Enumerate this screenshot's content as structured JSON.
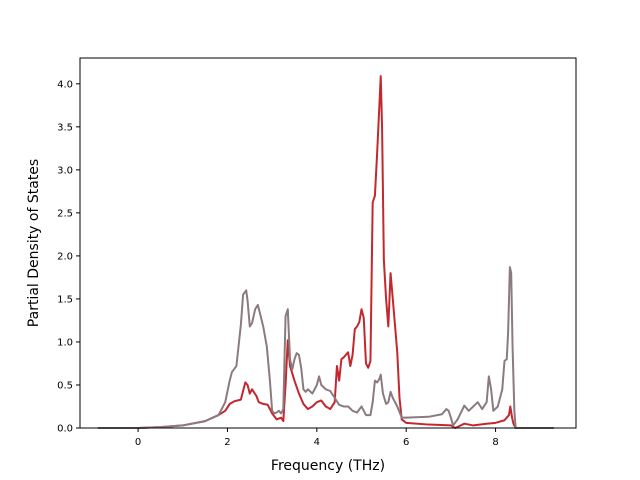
{
  "chart_data": {
    "type": "line",
    "title": "",
    "xlabel": "Frequency (THz)",
    "ylabel": "Partial Density of States",
    "xlim": [
      -1.3,
      9.8
    ],
    "ylim": [
      0.0,
      4.3
    ],
    "xticks": [
      0,
      2,
      4,
      6,
      8
    ],
    "yticks": [
      0.0,
      0.5,
      1.0,
      1.5,
      2.0,
      2.5,
      3.0,
      3.5,
      4.0
    ],
    "xtick_labels": [
      "0",
      "2",
      "4",
      "6",
      "8"
    ],
    "ytick_labels": [
      "0.0",
      "0.5",
      "1.0",
      "1.5",
      "2.0",
      "2.5",
      "3.0",
      "3.5",
      "4.0"
    ],
    "grid": false,
    "legend": false,
    "series": [
      {
        "color": "#c2282e",
        "points": [
          [
            -0.9,
            0.0
          ],
          [
            0.0,
            0.0
          ],
          [
            0.5,
            0.01
          ],
          [
            1.0,
            0.03
          ],
          [
            1.5,
            0.08
          ],
          [
            1.8,
            0.15
          ],
          [
            1.95,
            0.2
          ],
          [
            2.05,
            0.28
          ],
          [
            2.15,
            0.31
          ],
          [
            2.3,
            0.33
          ],
          [
            2.4,
            0.53
          ],
          [
            2.45,
            0.5
          ],
          [
            2.5,
            0.4
          ],
          [
            2.55,
            0.45
          ],
          [
            2.65,
            0.37
          ],
          [
            2.7,
            0.3
          ],
          [
            2.8,
            0.28
          ],
          [
            2.9,
            0.27
          ],
          [
            3.0,
            0.17
          ],
          [
            3.1,
            0.1
          ],
          [
            3.2,
            0.12
          ],
          [
            3.25,
            0.08
          ],
          [
            3.3,
            0.5
          ],
          [
            3.35,
            1.02
          ],
          [
            3.4,
            0.72
          ],
          [
            3.5,
            0.55
          ],
          [
            3.6,
            0.4
          ],
          [
            3.7,
            0.28
          ],
          [
            3.8,
            0.22
          ],
          [
            3.9,
            0.25
          ],
          [
            4.0,
            0.3
          ],
          [
            4.1,
            0.32
          ],
          [
            4.2,
            0.25
          ],
          [
            4.3,
            0.22
          ],
          [
            4.4,
            0.3
          ],
          [
            4.45,
            0.72
          ],
          [
            4.5,
            0.55
          ],
          [
            4.55,
            0.8
          ],
          [
            4.6,
            0.82
          ],
          [
            4.7,
            0.88
          ],
          [
            4.75,
            0.72
          ],
          [
            4.8,
            0.85
          ],
          [
            4.85,
            1.15
          ],
          [
            4.9,
            1.18
          ],
          [
            4.95,
            1.23
          ],
          [
            5.0,
            1.38
          ],
          [
            5.05,
            1.28
          ],
          [
            5.1,
            0.75
          ],
          [
            5.15,
            0.7
          ],
          [
            5.2,
            0.78
          ],
          [
            5.25,
            2.62
          ],
          [
            5.3,
            2.7
          ],
          [
            5.35,
            3.2
          ],
          [
            5.4,
            3.75
          ],
          [
            5.43,
            4.09
          ],
          [
            5.46,
            3.5
          ],
          [
            5.5,
            1.95
          ],
          [
            5.55,
            1.5
          ],
          [
            5.6,
            1.18
          ],
          [
            5.65,
            1.8
          ],
          [
            5.7,
            1.5
          ],
          [
            5.8,
            0.88
          ],
          [
            5.85,
            0.35
          ],
          [
            5.9,
            0.1
          ],
          [
            6.0,
            0.06
          ],
          [
            6.5,
            0.04
          ],
          [
            7.0,
            0.03
          ],
          [
            7.1,
            0.0
          ],
          [
            7.3,
            0.05
          ],
          [
            7.5,
            0.03
          ],
          [
            7.8,
            0.05
          ],
          [
            8.0,
            0.06
          ],
          [
            8.2,
            0.09
          ],
          [
            8.3,
            0.15
          ],
          [
            8.33,
            0.25
          ],
          [
            8.37,
            0.12
          ],
          [
            8.4,
            0.05
          ],
          [
            8.45,
            0.0
          ],
          [
            9.3,
            0.0
          ]
        ]
      },
      {
        "color": "#8a7b80",
        "points": [
          [
            -0.9,
            0.0
          ],
          [
            0.0,
            0.0
          ],
          [
            0.5,
            0.01
          ],
          [
            1.0,
            0.03
          ],
          [
            1.5,
            0.08
          ],
          [
            1.8,
            0.15
          ],
          [
            1.95,
            0.3
          ],
          [
            2.05,
            0.55
          ],
          [
            2.1,
            0.65
          ],
          [
            2.2,
            0.72
          ],
          [
            2.3,
            1.2
          ],
          [
            2.35,
            1.55
          ],
          [
            2.42,
            1.6
          ],
          [
            2.45,
            1.48
          ],
          [
            2.5,
            1.18
          ],
          [
            2.55,
            1.22
          ],
          [
            2.62,
            1.38
          ],
          [
            2.68,
            1.43
          ],
          [
            2.72,
            1.35
          ],
          [
            2.8,
            1.18
          ],
          [
            2.88,
            0.95
          ],
          [
            2.95,
            0.55
          ],
          [
            3.0,
            0.2
          ],
          [
            3.05,
            0.17
          ],
          [
            3.1,
            0.18
          ],
          [
            3.15,
            0.2
          ],
          [
            3.2,
            0.17
          ],
          [
            3.25,
            0.22
          ],
          [
            3.3,
            1.3
          ],
          [
            3.35,
            1.38
          ],
          [
            3.4,
            0.8
          ],
          [
            3.45,
            0.68
          ],
          [
            3.5,
            0.8
          ],
          [
            3.55,
            0.87
          ],
          [
            3.6,
            0.85
          ],
          [
            3.65,
            0.7
          ],
          [
            3.7,
            0.45
          ],
          [
            3.75,
            0.42
          ],
          [
            3.8,
            0.45
          ],
          [
            3.9,
            0.4
          ],
          [
            4.0,
            0.5
          ],
          [
            4.05,
            0.6
          ],
          [
            4.1,
            0.5
          ],
          [
            4.2,
            0.45
          ],
          [
            4.3,
            0.43
          ],
          [
            4.4,
            0.35
          ],
          [
            4.5,
            0.27
          ],
          [
            4.6,
            0.25
          ],
          [
            4.7,
            0.25
          ],
          [
            4.8,
            0.2
          ],
          [
            4.9,
            0.18
          ],
          [
            5.0,
            0.25
          ],
          [
            5.05,
            0.2
          ],
          [
            5.1,
            0.15
          ],
          [
            5.2,
            0.15
          ],
          [
            5.25,
            0.3
          ],
          [
            5.3,
            0.55
          ],
          [
            5.35,
            0.53
          ],
          [
            5.4,
            0.57
          ],
          [
            5.43,
            0.62
          ],
          [
            5.48,
            0.4
          ],
          [
            5.55,
            0.28
          ],
          [
            5.6,
            0.3
          ],
          [
            5.65,
            0.42
          ],
          [
            5.7,
            0.35
          ],
          [
            5.75,
            0.3
          ],
          [
            5.8,
            0.25
          ],
          [
            5.9,
            0.12
          ],
          [
            6.0,
            0.12
          ],
          [
            6.5,
            0.13
          ],
          [
            6.8,
            0.16
          ],
          [
            6.9,
            0.22
          ],
          [
            6.95,
            0.2
          ],
          [
            7.0,
            0.12
          ],
          [
            7.05,
            0.03
          ],
          [
            7.15,
            0.1
          ],
          [
            7.3,
            0.26
          ],
          [
            7.4,
            0.2
          ],
          [
            7.5,
            0.25
          ],
          [
            7.6,
            0.3
          ],
          [
            7.7,
            0.22
          ],
          [
            7.8,
            0.3
          ],
          [
            7.85,
            0.6
          ],
          [
            7.9,
            0.45
          ],
          [
            7.95,
            0.2
          ],
          [
            8.05,
            0.25
          ],
          [
            8.15,
            0.45
          ],
          [
            8.2,
            0.78
          ],
          [
            8.25,
            0.8
          ],
          [
            8.28,
            1.1
          ],
          [
            8.32,
            1.87
          ],
          [
            8.35,
            1.8
          ],
          [
            8.38,
            0.95
          ],
          [
            8.42,
            0.2
          ],
          [
            8.45,
            0.0
          ],
          [
            9.3,
            0.0
          ]
        ]
      }
    ]
  }
}
